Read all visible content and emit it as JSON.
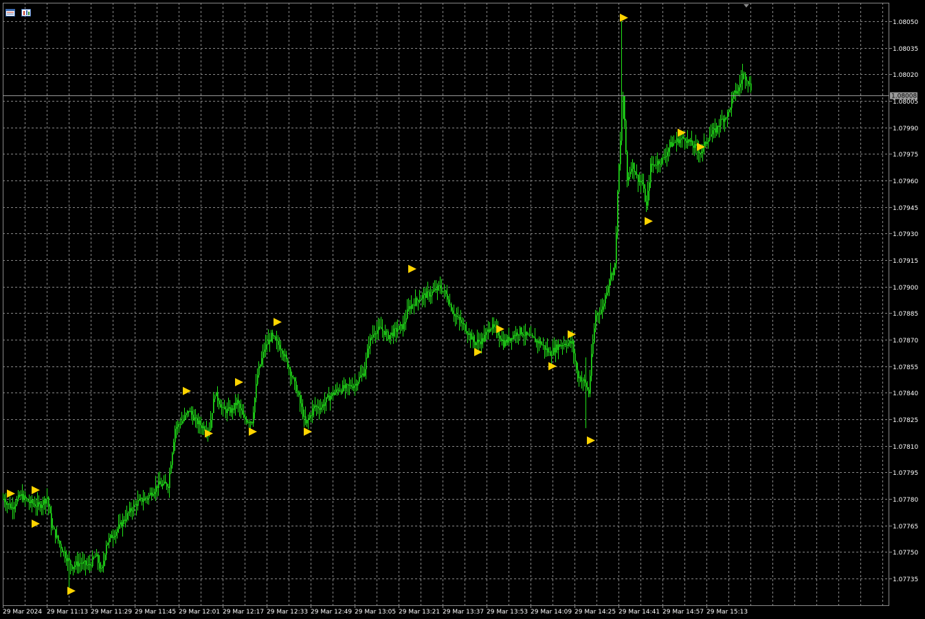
{
  "toolbar": {
    "icons": [
      "chart-grid-icon",
      "chart-properties-icon"
    ]
  },
  "colors": {
    "background": "#000000",
    "grid": "#8a8a8a",
    "candle": "#22e61a",
    "marker": "#ffd400",
    "axis_text": "#ffffff",
    "current_price_tag": "#9a9a9a"
  },
  "chart_data": {
    "type": "candlestick",
    "title": "",
    "xlabel": "",
    "ylabel": "",
    "ylim": [
      1.07724,
      1.08062
    ],
    "grid": true,
    "y_ticks": [
      "1.08050",
      "1.08035",
      "1.08020",
      "1.08005",
      "1.07990",
      "1.07975",
      "1.07960",
      "1.07945",
      "1.07930",
      "1.07915",
      "1.07900",
      "1.07885",
      "1.07870",
      "1.07855",
      "1.07840",
      "1.07825",
      "1.07810",
      "1.07795",
      "1.07780",
      "1.07765",
      "1.07750",
      "1.07735"
    ],
    "x_ticks": [
      "29 Mar 2024",
      "29 Mar 11:13",
      "29 Mar 11:29",
      "29 Mar 11:45",
      "29 Mar 12:01",
      "29 Mar 12:17",
      "29 Mar 12:33",
      "29 Mar 12:49",
      "29 Mar 13:05",
      "29 Mar 13:21",
      "29 Mar 13:37",
      "29 Mar 13:53",
      "29 Mar 14:09",
      "29 Mar 14:25",
      "29 Mar 14:41",
      "29 Mar 14:57",
      "29 Mar 15:13"
    ],
    "current_price": "1.08008",
    "price_path": [
      [
        0,
        1.0778
      ],
      [
        12,
        1.07775
      ],
      [
        25,
        1.07782
      ],
      [
        38,
        1.07778
      ],
      [
        52,
        1.07776
      ],
      [
        64,
        1.07781
      ],
      [
        70,
        1.07765
      ],
      [
        78,
        1.07758
      ],
      [
        90,
        1.07748
      ],
      [
        100,
        1.07742
      ],
      [
        112,
        1.07744
      ],
      [
        125,
        1.07742
      ],
      [
        135,
        1.07748
      ],
      [
        143,
        1.07738
      ],
      [
        150,
        1.07755
      ],
      [
        160,
        1.0776
      ],
      [
        170,
        1.07765
      ],
      [
        182,
        1.07772
      ],
      [
        195,
        1.07778
      ],
      [
        210,
        1.07781
      ],
      [
        225,
        1.07788
      ],
      [
        240,
        1.07788
      ],
      [
        250,
        1.0782
      ],
      [
        262,
        1.07825
      ],
      [
        270,
        1.0783
      ],
      [
        280,
        1.07824
      ],
      [
        292,
        1.0782
      ],
      [
        300,
        1.0782
      ],
      [
        308,
        1.0784
      ],
      [
        320,
        1.0783
      ],
      [
        332,
        1.0783
      ],
      [
        340,
        1.07835
      ],
      [
        350,
        1.07825
      ],
      [
        362,
        1.07824
      ],
      [
        370,
        1.0785
      ],
      [
        380,
        1.07865
      ],
      [
        390,
        1.07872
      ],
      [
        398,
        1.07868
      ],
      [
        405,
        1.07865
      ],
      [
        415,
        1.07855
      ],
      [
        428,
        1.0784
      ],
      [
        440,
        1.07822
      ],
      [
        452,
        1.07832
      ],
      [
        462,
        1.07832
      ],
      [
        475,
        1.07838
      ],
      [
        488,
        1.07842
      ],
      [
        500,
        1.07843
      ],
      [
        512,
        1.07845
      ],
      [
        525,
        1.07852
      ],
      [
        532,
        1.07868
      ],
      [
        540,
        1.07875
      ],
      [
        550,
        1.07876
      ],
      [
        560,
        1.07872
      ],
      [
        570,
        1.07875
      ],
      [
        582,
        1.07878
      ],
      [
        590,
        1.07888
      ],
      [
        600,
        1.07892
      ],
      [
        612,
        1.07895
      ],
      [
        622,
        1.07896
      ],
      [
        635,
        1.079
      ],
      [
        645,
        1.07895
      ],
      [
        655,
        1.07885
      ],
      [
        665,
        1.0788
      ],
      [
        675,
        1.07875
      ],
      [
        685,
        1.07868
      ],
      [
        698,
        1.0787
      ],
      [
        708,
        1.07878
      ],
      [
        718,
        1.07875
      ],
      [
        728,
        1.07868
      ],
      [
        740,
        1.07872
      ],
      [
        752,
        1.07875
      ],
      [
        762,
        1.07872
      ],
      [
        772,
        1.0787
      ],
      [
        782,
        1.07868
      ],
      [
        795,
        1.07862
      ],
      [
        805,
        1.07866
      ],
      [
        815,
        1.07868
      ],
      [
        828,
        1.07868
      ],
      [
        835,
        1.0785
      ],
      [
        845,
        1.07846
      ],
      [
        852,
        1.0784
      ],
      [
        856,
        1.0786
      ],
      [
        862,
        1.07884
      ],
      [
        872,
        1.07888
      ],
      [
        882,
        1.07905
      ],
      [
        890,
        1.07912
      ],
      [
        895,
        1.07962
      ],
      [
        902,
        1.08008
      ],
      [
        908,
        1.0796
      ],
      [
        915,
        1.0797
      ],
      [
        922,
        1.07962
      ],
      [
        930,
        1.07958
      ],
      [
        936,
        1.07945
      ],
      [
        942,
        1.07968
      ],
      [
        950,
        1.0797
      ],
      [
        960,
        1.07972
      ],
      [
        970,
        1.0798
      ],
      [
        982,
        1.07983
      ],
      [
        992,
        1.07984
      ],
      [
        1002,
        1.0798
      ],
      [
        1015,
        1.07976
      ],
      [
        1025,
        1.07984
      ],
      [
        1035,
        1.07988
      ],
      [
        1045,
        1.07994
      ],
      [
        1055,
        1.07998
      ],
      [
        1062,
        1.08008
      ],
      [
        1070,
        1.08012
      ],
      [
        1076,
        1.0802
      ],
      [
        1082,
        1.08018
      ],
      [
        1088,
        1.08012
      ]
    ],
    "markers": [
      [
        12,
        1.07783
      ],
      [
        48,
        1.07785
      ],
      [
        48,
        1.07766
      ],
      [
        100,
        1.07728
      ],
      [
        268,
        1.07841
      ],
      [
        300,
        1.07817
      ],
      [
        344,
        1.07846
      ],
      [
        364,
        1.07818
      ],
      [
        400,
        1.0788
      ],
      [
        444,
        1.07818
      ],
      [
        596,
        1.0791
      ],
      [
        692,
        1.07863
      ],
      [
        724,
        1.07876
      ],
      [
        800,
        1.07855
      ],
      [
        828,
        1.07873
      ],
      [
        856,
        1.07813
      ],
      [
        904,
        1.08052
      ],
      [
        940,
        1.07937
      ],
      [
        988,
        1.07987
      ],
      [
        1016,
        1.07979
      ]
    ]
  }
}
